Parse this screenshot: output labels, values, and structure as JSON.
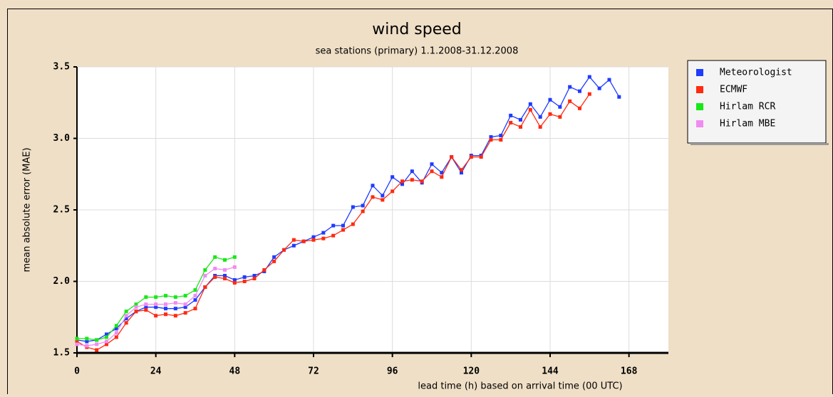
{
  "chart_data": {
    "type": "line",
    "title": "wind speed",
    "subtitle": "sea stations (primary) 1.1.2008-31.12.2008",
    "x_label": "lead time (h) based on arrival time (00 UTC)",
    "y_label": "mean absolute error (MAE)",
    "xlim": [
      0,
      180
    ],
    "ylim": [
      1.5,
      3.5
    ],
    "xticks": [
      0,
      24,
      48,
      72,
      96,
      120,
      144,
      168
    ],
    "yticks": [
      1.5,
      {
        "value": 2,
        "label": "2.0"
      },
      2.5,
      {
        "value": 3,
        "label": "3.0"
      },
      3.5
    ],
    "grid": true,
    "legend": "outside-right",
    "series": [
      {
        "name": "Meteorologist",
        "color": "#1f3bff",
        "x": [
          0,
          3,
          6,
          9,
          12,
          15,
          18,
          21,
          24,
          27,
          30,
          33,
          36,
          39,
          42,
          45,
          48,
          51,
          54,
          57,
          60,
          63,
          66,
          69,
          72,
          75,
          78,
          81,
          84,
          87,
          90,
          93,
          96,
          99,
          102,
          105,
          108,
          111,
          114,
          117,
          120,
          123,
          126,
          129,
          132,
          135,
          138,
          141,
          144,
          147,
          150,
          153,
          156,
          159,
          162,
          165
        ],
        "values": [
          1.59,
          1.58,
          1.59,
          1.63,
          1.67,
          1.74,
          1.79,
          1.82,
          1.82,
          1.81,
          1.81,
          1.82,
          1.87,
          1.96,
          2.04,
          2.04,
          2.01,
          2.03,
          2.04,
          2.07,
          2.17,
          2.22,
          2.25,
          2.28,
          2.31,
          2.34,
          2.39,
          2.39,
          2.52,
          2.53,
          2.67,
          2.6,
          2.73,
          2.68,
          2.77,
          2.69,
          2.82,
          2.76,
          2.87,
          2.76,
          2.88,
          2.88,
          3.01,
          3.02,
          3.16,
          3.13,
          3.24,
          3.15,
          3.27,
          3.22,
          3.36,
          3.33,
          3.43,
          3.35,
          3.41,
          3.29
        ]
      },
      {
        "name": "ECMWF",
        "color": "#ff2a10",
        "x": [
          0,
          3,
          6,
          9,
          12,
          15,
          18,
          21,
          24,
          27,
          30,
          33,
          36,
          39,
          42,
          45,
          48,
          51,
          54,
          57,
          60,
          63,
          66,
          69,
          72,
          75,
          78,
          81,
          84,
          87,
          90,
          93,
          96,
          99,
          102,
          105,
          108,
          111,
          114,
          117,
          120,
          123,
          126,
          129,
          132,
          135,
          138,
          141,
          144,
          147,
          150,
          153,
          156
        ],
        "values": [
          1.58,
          1.54,
          1.52,
          1.56,
          1.61,
          1.71,
          1.79,
          1.8,
          1.76,
          1.77,
          1.76,
          1.78,
          1.81,
          1.96,
          2.03,
          2.02,
          1.99,
          2.0,
          2.02,
          2.08,
          2.14,
          2.22,
          2.29,
          2.28,
          2.29,
          2.3,
          2.32,
          2.36,
          2.4,
          2.49,
          2.59,
          2.57,
          2.63,
          2.7,
          2.71,
          2.7,
          2.77,
          2.73,
          2.87,
          2.78,
          2.87,
          2.87,
          2.99,
          2.99,
          3.11,
          3.08,
          3.2,
          3.08,
          3.17,
          3.15,
          3.26,
          3.21,
          3.31
        ]
      },
      {
        "name": "Hirlam RCR",
        "color": "#18e818",
        "x": [
          0,
          3,
          6,
          9,
          12,
          15,
          18,
          21,
          24,
          27,
          30,
          33,
          36,
          39,
          42,
          45,
          48
        ],
        "values": [
          1.6,
          1.6,
          1.59,
          1.61,
          1.69,
          1.79,
          1.84,
          1.89,
          1.89,
          1.9,
          1.89,
          1.9,
          1.94,
          2.08,
          2.17,
          2.15,
          2.17
        ]
      },
      {
        "name": "Hirlam MBE",
        "color": "#f08cf0",
        "x": [
          0,
          3,
          6,
          9,
          12,
          15,
          18,
          21,
          24,
          27,
          30,
          33,
          36,
          39,
          42,
          45,
          48
        ],
        "values": [
          1.56,
          1.55,
          1.56,
          1.58,
          1.64,
          1.76,
          1.82,
          1.84,
          1.84,
          1.84,
          1.85,
          1.84,
          1.9,
          2.04,
          2.09,
          2.08,
          2.1
        ]
      }
    ]
  }
}
